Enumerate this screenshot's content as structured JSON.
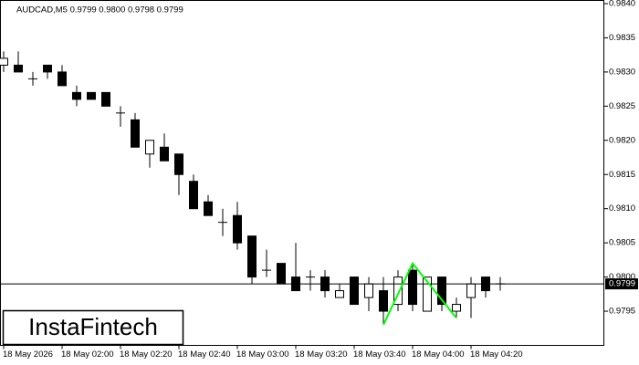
{
  "chart_data": {
    "type": "candlestick",
    "title": "AUDCAD,M5  0.9799 0.9800 0.9798 0.9799",
    "categories": [
      "18 May 2026",
      null,
      null,
      null,
      "18 May 02:00",
      null,
      null,
      null,
      "18 May 02:20",
      null,
      null,
      null,
      "18 May 02:40",
      null,
      null,
      null,
      "18 May 03:00",
      null,
      null,
      null,
      "18 May 03:20",
      null,
      null,
      null,
      "18 May 03:40",
      null,
      null,
      null,
      "18 May 04:00",
      null,
      null,
      null,
      "18 May 04:20",
      null,
      null
    ],
    "open": [
      0.9831,
      0.9831,
      0.9829,
      0.9831,
      0.983,
      0.9827,
      0.9827,
      0.9827,
      0.9824,
      0.9823,
      0.9818,
      0.9819,
      0.9818,
      0.9814,
      0.9811,
      0.9808,
      0.9809,
      0.9806,
      0.9801,
      0.9802,
      0.98,
      0.98,
      0.98,
      0.9797,
      0.98,
      0.9797,
      0.9798,
      0.9796,
      0.9801,
      0.9795,
      0.98,
      0.9795,
      0.9797,
      0.98,
      0.9799
    ],
    "high": [
      0.9833,
      0.9833,
      0.983,
      0.9831,
      0.9831,
      0.9828,
      0.9827,
      0.9827,
      0.9825,
      0.9824,
      0.982,
      0.9821,
      0.9818,
      0.9815,
      0.9812,
      0.981,
      0.9811,
      0.9806,
      0.9804,
      0.9802,
      0.9805,
      0.9801,
      0.9801,
      0.9799,
      0.98,
      0.98,
      0.98,
      0.9801,
      0.9802,
      0.98,
      0.98,
      0.9797,
      0.98,
      0.98,
      0.98
    ],
    "low": [
      0.983,
      0.983,
      0.9828,
      0.9829,
      0.9828,
      0.9825,
      0.9826,
      0.9825,
      0.9822,
      0.9819,
      0.9816,
      0.9817,
      0.9812,
      0.981,
      0.9809,
      0.9806,
      0.9804,
      0.9799,
      0.98,
      0.9799,
      0.9798,
      0.9798,
      0.9797,
      0.9797,
      0.9796,
      0.9795,
      0.9793,
      0.9795,
      0.9795,
      0.9795,
      0.9795,
      0.9794,
      0.9794,
      0.9797,
      0.9798
    ],
    "close": [
      0.9832,
      0.983,
      0.9829,
      0.983,
      0.9828,
      0.9826,
      0.9826,
      0.9825,
      0.9824,
      0.9819,
      0.982,
      0.9817,
      0.9815,
      0.981,
      0.9809,
      0.9808,
      0.9805,
      0.98,
      0.9801,
      0.9799,
      0.9798,
      0.98,
      0.9798,
      0.9798,
      0.9796,
      0.9799,
      0.9795,
      0.98,
      0.9796,
      0.98,
      0.9796,
      0.9796,
      0.9799,
      0.9798,
      0.9799
    ],
    "up_color": "#ffffff",
    "down_color": "#000000",
    "ylim": [
      0.979,
      0.984
    ],
    "yticks": [
      0.9795,
      {
        "value": 0.98,
        "label": "0.9800"
      },
      0.9805,
      {
        "value": 0.981,
        "label": "0.9810"
      },
      0.9815,
      {
        "value": 0.982,
        "label": "0.9820"
      },
      0.9825,
      {
        "value": 0.983,
        "label": "0.9830"
      },
      0.9835,
      {
        "value": 0.984,
        "label": "0.9840"
      }
    ],
    "last_price": 0.9799,
    "pattern": {
      "color": "#00ff00",
      "candles": [
        26,
        28,
        31
      ],
      "values": [
        0.9793,
        0.9802,
        0.9794
      ]
    },
    "logo": "InstaFintech"
  }
}
